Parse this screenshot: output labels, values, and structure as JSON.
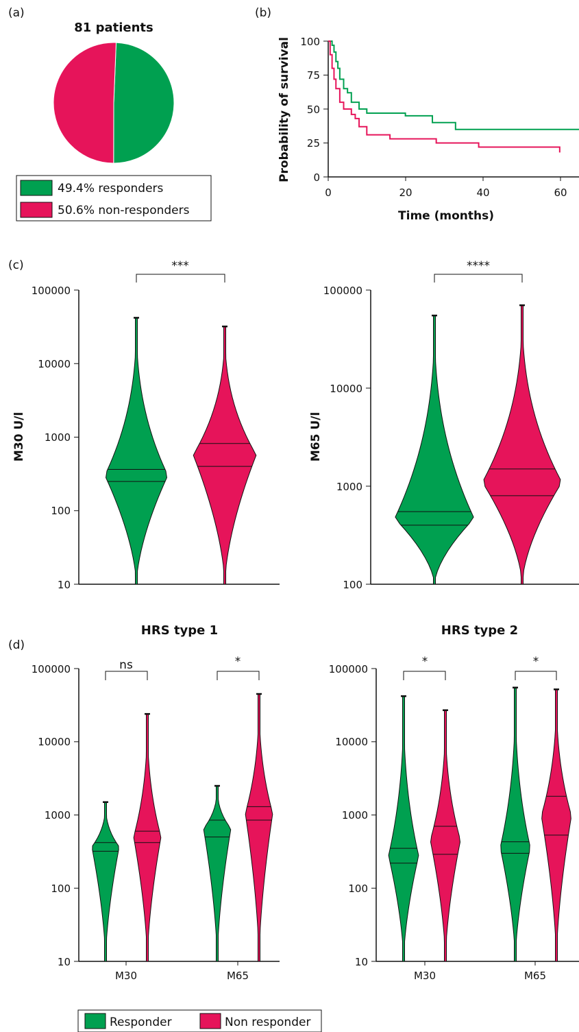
{
  "colors": {
    "responder": "#00a050",
    "non_responder": "#e6145a",
    "axis": "#111111"
  },
  "chart_data": [
    {
      "type": "pie",
      "panel_label": "(a)",
      "title": "81 patients",
      "slices": [
        {
          "label": "49.4% responders",
          "value": 49.4,
          "color": "#00a050"
        },
        {
          "label": "50.6% non-responders",
          "value": 50.6,
          "color": "#e6145a"
        }
      ],
      "legend_placement": "bottom"
    },
    {
      "type": "line",
      "subtype": "kaplan-meier",
      "panel_label": "(b)",
      "xlabel": "Time (months)",
      "ylabel": "Probability of survival",
      "xlim": [
        0,
        65
      ],
      "ylim": [
        0,
        100
      ],
      "xticks": [
        "0",
        "20",
        "40",
        "60"
      ],
      "yticks": [
        "0",
        "25",
        "50",
        "75",
        "100"
      ],
      "series": [
        {
          "color": "#00a050",
          "x": [
            0,
            1,
            1.5,
            2,
            2.5,
            3,
            4,
            5,
            6,
            8,
            10,
            20,
            27,
            33,
            65
          ],
          "y": [
            100,
            97,
            92,
            85,
            80,
            72,
            65,
            62,
            55,
            50,
            47,
            45,
            40,
            35,
            35
          ]
        },
        {
          "color": "#e6145a",
          "x": [
            0,
            0.5,
            1,
            1.5,
            2,
            3,
            4,
            6,
            7,
            8,
            10,
            16,
            28,
            39,
            60
          ],
          "y": [
            100,
            90,
            80,
            72,
            65,
            55,
            50,
            46,
            43,
            37,
            31,
            28,
            25,
            22,
            18
          ]
        }
      ]
    },
    {
      "type": "violin",
      "panel_label": "(c)",
      "ylabel": "M30 U/l",
      "yscale": "log",
      "ylim": [
        10,
        100000
      ],
      "yticks": [
        "10",
        "100",
        "1000",
        "10000",
        "100000"
      ],
      "significance": "***",
      "groups": [
        {
          "name": "Responder",
          "color": "#00a050",
          "min": 10,
          "max": 42000,
          "median": 250,
          "q3": 365
        },
        {
          "name": "Non responder",
          "color": "#e6145a",
          "min": 10,
          "max": 32000,
          "median": 400,
          "q3": 820
        }
      ]
    },
    {
      "type": "violin",
      "ylabel": "M65 U/l",
      "yscale": "log",
      "ylim": [
        100,
        100000
      ],
      "yticks": [
        "100",
        "1000",
        "10000",
        "100000"
      ],
      "significance": "****",
      "groups": [
        {
          "name": "Responder",
          "color": "#00a050",
          "min": 100,
          "max": 55000,
          "median": 400,
          "q3": 550
        },
        {
          "name": "Non responder",
          "color": "#e6145a",
          "min": 100,
          "max": 70000,
          "median": 800,
          "q3": 1500
        }
      ]
    },
    {
      "type": "violin",
      "panel_label": "(d)",
      "title": "HRS type 1",
      "yscale": "log",
      "ylim": [
        10,
        100000
      ],
      "yticks": [
        "10",
        "100",
        "1000",
        "10000",
        "100000"
      ],
      "categories": [
        "M30",
        "M65"
      ],
      "significance": [
        "ns",
        "*"
      ],
      "groups": [
        {
          "category": "M30",
          "name": "Responder",
          "color": "#00a050",
          "min": 10,
          "max": 1500,
          "median": 320,
          "q3": 420
        },
        {
          "category": "M30",
          "name": "Non responder",
          "color": "#e6145a",
          "min": 10,
          "max": 24000,
          "median": 420,
          "q3": 600
        },
        {
          "category": "M65",
          "name": "Responder",
          "color": "#00a050",
          "min": 10,
          "max": 2500,
          "median": 500,
          "q3": 850
        },
        {
          "category": "M65",
          "name": "Non responder",
          "color": "#e6145a",
          "min": 10,
          "max": 45000,
          "median": 850,
          "q3": 1300
        }
      ]
    },
    {
      "type": "violin",
      "title": "HRS type 2",
      "yscale": "log",
      "ylim": [
        10,
        100000
      ],
      "yticks": [
        "10",
        "100",
        "1000",
        "10000",
        "100000"
      ],
      "categories": [
        "M30",
        "M65"
      ],
      "significance": [
        "*",
        "*"
      ],
      "groups": [
        {
          "category": "M30",
          "name": "Responder",
          "color": "#00a050",
          "min": 10,
          "max": 42000,
          "median": 220,
          "q3": 350
        },
        {
          "category": "M30",
          "name": "Non responder",
          "color": "#e6145a",
          "min": 10,
          "max": 27000,
          "median": 290,
          "q3": 700
        },
        {
          "category": "M65",
          "name": "Responder",
          "color": "#00a050",
          "min": 10,
          "max": 55000,
          "median": 300,
          "q3": 430
        },
        {
          "category": "M65",
          "name": "Non responder",
          "color": "#e6145a",
          "min": 10,
          "max": 52000,
          "median": 530,
          "q3": 1800
        }
      ]
    }
  ],
  "legend": {
    "responder": "Responder",
    "non_responder": "Non responder"
  }
}
